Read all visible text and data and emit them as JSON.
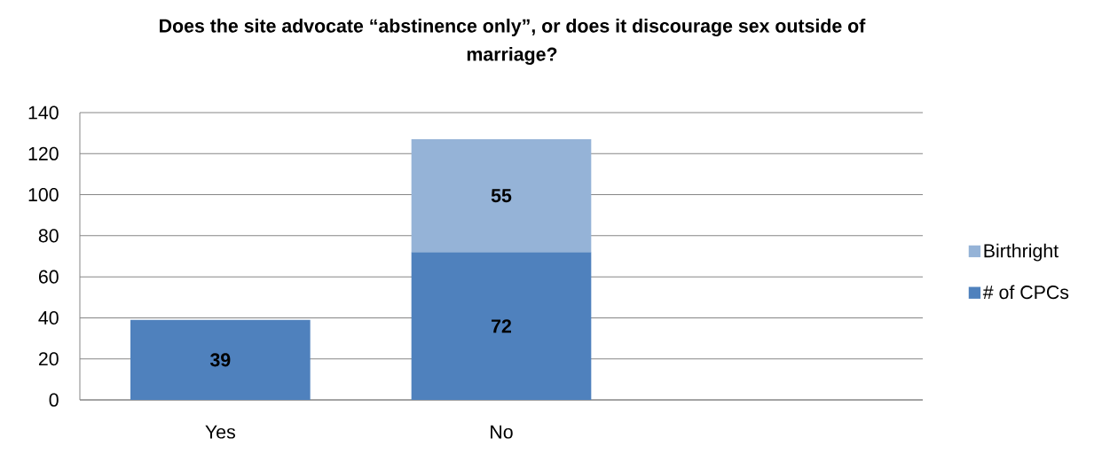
{
  "chart_data": {
    "type": "bar",
    "title": "Does the site advocate “abstinence only”, or does it discourage sex outside of marriage?",
    "categories": [
      "Yes",
      "No",
      null
    ],
    "series": [
      {
        "name": "# of CPCs",
        "color": "#4f81bd",
        "values": [
          39,
          72,
          null
        ]
      },
      {
        "name": "Birthright",
        "color": "#95b3d7",
        "values": [
          null,
          55,
          null
        ]
      }
    ],
    "stacked": true,
    "ylim": [
      0,
      140
    ],
    "yticks": [
      0,
      20,
      40,
      60,
      80,
      100,
      120,
      140
    ],
    "grid": "y",
    "legend": "right",
    "data_labels": true
  }
}
